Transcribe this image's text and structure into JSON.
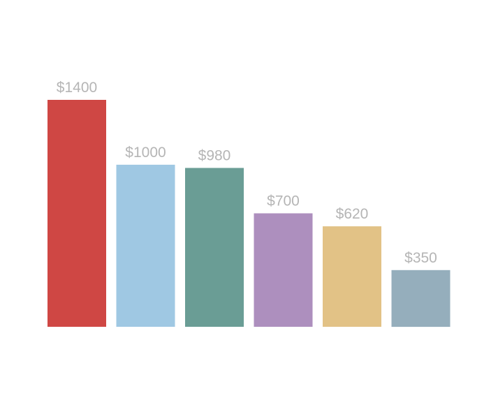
{
  "chart_data": {
    "type": "bar",
    "title": "",
    "xlabel": "",
    "ylabel": "",
    "categories": [
      "",
      "",
      "",
      "",
      "",
      ""
    ],
    "values": [
      1400,
      1000,
      980,
      700,
      620,
      350
    ],
    "labels": [
      "$1400",
      "$1000",
      "$980",
      "$700",
      "$620",
      "$350"
    ],
    "colors": [
      "#cf4744",
      "#9fc8e3",
      "#6a9d95",
      "#ad8fbe",
      "#e2c286",
      "#95aebc"
    ],
    "ylim": [
      0,
      1400
    ],
    "grid": false,
    "legend": "none"
  }
}
